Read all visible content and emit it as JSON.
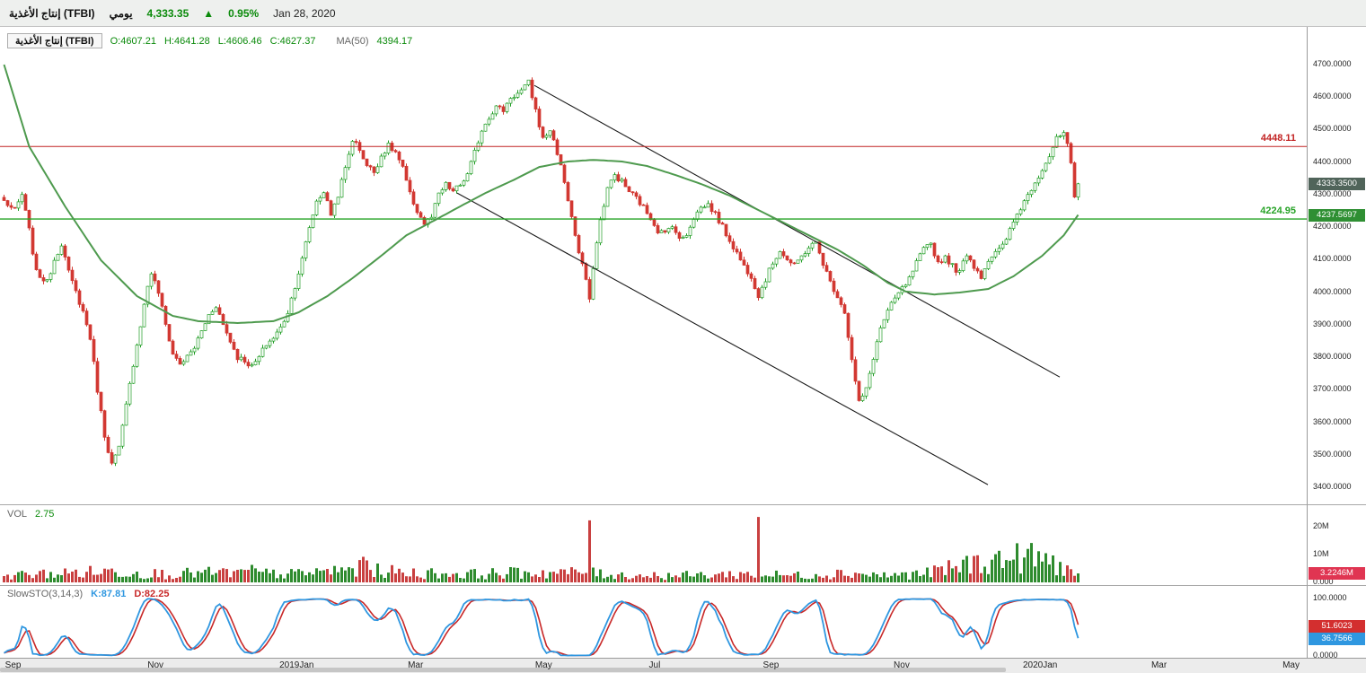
{
  "header": {
    "symbol": "إنتاج الأغذية (TFBI)",
    "timeframe": "يومي",
    "last_price": "4,333.35",
    "change_icon": "▲",
    "change_pct": "0.95%",
    "date": "Jan 28, 2020"
  },
  "legend": {
    "symbol": "إنتاج الأغذية (TFBI)",
    "ohlc": [
      "O:4607.21",
      "H:4641.28",
      "L:4606.46",
      "C:4627.37"
    ],
    "ma_label": "MA(50)",
    "ma_value": "4394.17"
  },
  "main_overlays": {
    "resistance_label": "4448.11",
    "support_label": "4224.95",
    "price_badge": "4333.3500",
    "ma_badge": "4237.5697"
  },
  "y_axis": {
    "ticks": [
      {
        "label": "4700.0000",
        "value": 4700
      },
      {
        "label": "4600.0000",
        "value": 4600
      },
      {
        "label": "4500.0000",
        "value": 4500
      },
      {
        "label": "4400.0000",
        "value": 4400
      },
      {
        "label": "4300.0000",
        "value": 4300
      },
      {
        "label": "4200.0000",
        "value": 4200
      },
      {
        "label": "4100.0000",
        "value": 4100
      },
      {
        "label": "4000.0000",
        "value": 4000
      },
      {
        "label": "3900.0000",
        "value": 3900
      },
      {
        "label": "3800.0000",
        "value": 3800
      },
      {
        "label": "3700.0000",
        "value": 3700
      },
      {
        "label": "3600.0000",
        "value": 3600
      },
      {
        "label": "3500.0000",
        "value": 3500
      },
      {
        "label": "3400.0000",
        "value": 3400
      }
    ]
  },
  "volume_pane": {
    "label": "VOL",
    "value": "2.75",
    "badge": "3.2246M",
    "ticks": [
      {
        "label": "20M",
        "value": 20
      },
      {
        "label": "10M",
        "value": 10
      },
      {
        "label": "0.000",
        "value": 0
      }
    ]
  },
  "sto_pane": {
    "label": "SlowSTO(3,14,3)",
    "k_text": "K:87.81",
    "d_text": "D:82.25",
    "d_badge": "51.6023",
    "k_badge": "36.7566",
    "ticks": [
      {
        "label": "100.0000",
        "value": 100
      },
      {
        "label": "0.0000",
        "value": 0
      }
    ]
  },
  "time_axis": {
    "labels": [
      {
        "label": "Sep",
        "x": 0.01
      },
      {
        "label": "Nov",
        "x": 0.119
      },
      {
        "label": "2019Jan",
        "x": 0.227
      },
      {
        "label": "Mar",
        "x": 0.318
      },
      {
        "label": "May",
        "x": 0.416
      },
      {
        "label": "Jul",
        "x": 0.501
      },
      {
        "label": "Sep",
        "x": 0.59
      },
      {
        "label": "Nov",
        "x": 0.69
      },
      {
        "label": "2020Jan",
        "x": 0.796
      },
      {
        "label": "Mar",
        "x": 0.887
      },
      {
        "label": "May",
        "x": 0.988
      }
    ]
  },
  "chart_data": {
    "type": "candlestick",
    "title": "إنتاج الأغذية (TFBI) يومي",
    "x_axis": "Sep 2018 – Jan 2020 (daily)",
    "y_range": [
      3400,
      4700
    ],
    "candle_count": 300,
    "last_close": 4333.35,
    "prev_close": 4292.5,
    "levels": {
      "resistance": 4448.11,
      "support": 4224.95
    },
    "close_anchors": [
      [
        0,
        4280
      ],
      [
        3,
        4250
      ],
      [
        5,
        4300
      ],
      [
        7,
        4190
      ],
      [
        9,
        4060
      ],
      [
        12,
        4030
      ],
      [
        14,
        4100
      ],
      [
        16,
        4150
      ],
      [
        18,
        4060
      ],
      [
        20,
        4000
      ],
      [
        22,
        3940
      ],
      [
        24,
        3860
      ],
      [
        26,
        3700
      ],
      [
        28,
        3560
      ],
      [
        30,
        3470
      ],
      [
        32,
        3520
      ],
      [
        34,
        3650
      ],
      [
        36,
        3780
      ],
      [
        38,
        3900
      ],
      [
        40,
        4020
      ],
      [
        41,
        4060
      ],
      [
        43,
        4000
      ],
      [
        45,
        3900
      ],
      [
        47,
        3810
      ],
      [
        49,
        3780
      ],
      [
        51,
        3800
      ],
      [
        53,
        3830
      ],
      [
        55,
        3880
      ],
      [
        57,
        3930
      ],
      [
        59,
        3960
      ],
      [
        61,
        3900
      ],
      [
        63,
        3850
      ],
      [
        65,
        3800
      ],
      [
        67,
        3790
      ],
      [
        69,
        3770
      ],
      [
        71,
        3800
      ],
      [
        73,
        3840
      ],
      [
        75,
        3860
      ],
      [
        77,
        3890
      ],
      [
        79,
        3940
      ],
      [
        81,
        4020
      ],
      [
        83,
        4100
      ],
      [
        85,
        4200
      ],
      [
        87,
        4280
      ],
      [
        89,
        4310
      ],
      [
        91,
        4240
      ],
      [
        93,
        4300
      ],
      [
        95,
        4380
      ],
      [
        97,
        4470
      ],
      [
        99,
        4440
      ],
      [
        101,
        4390
      ],
      [
        103,
        4370
      ],
      [
        105,
        4420
      ],
      [
        107,
        4450
      ],
      [
        109,
        4430
      ],
      [
        111,
        4380
      ],
      [
        113,
        4300
      ],
      [
        115,
        4250
      ],
      [
        117,
        4210
      ],
      [
        119,
        4230
      ],
      [
        121,
        4300
      ],
      [
        123,
        4330
      ],
      [
        125,
        4310
      ],
      [
        127,
        4330
      ],
      [
        129,
        4360
      ],
      [
        131,
        4430
      ],
      [
        133,
        4500
      ],
      [
        135,
        4540
      ],
      [
        137,
        4570
      ],
      [
        139,
        4560
      ],
      [
        141,
        4600
      ],
      [
        143,
        4610
      ],
      [
        145,
        4630
      ],
      [
        146,
        4645
      ],
      [
        148,
        4560
      ],
      [
        150,
        4470
      ],
      [
        152,
        4500
      ],
      [
        154,
        4430
      ],
      [
        156,
        4340
      ],
      [
        158,
        4230
      ],
      [
        160,
        4120
      ],
      [
        162,
        4040
      ],
      [
        163,
        3970
      ],
      [
        164,
        4080
      ],
      [
        166,
        4220
      ],
      [
        168,
        4320
      ],
      [
        170,
        4360
      ],
      [
        172,
        4340
      ],
      [
        174,
        4310
      ],
      [
        176,
        4290
      ],
      [
        178,
        4260
      ],
      [
        180,
        4230
      ],
      [
        182,
        4190
      ],
      [
        184,
        4180
      ],
      [
        186,
        4210
      ],
      [
        188,
        4160
      ],
      [
        190,
        4180
      ],
      [
        192,
        4230
      ],
      [
        194,
        4260
      ],
      [
        196,
        4270
      ],
      [
        198,
        4240
      ],
      [
        200,
        4200
      ],
      [
        202,
        4160
      ],
      [
        204,
        4120
      ],
      [
        206,
        4080
      ],
      [
        208,
        4050
      ],
      [
        210,
        3990
      ],
      [
        212,
        4040
      ],
      [
        214,
        4090
      ],
      [
        216,
        4130
      ],
      [
        218,
        4100
      ],
      [
        220,
        4080
      ],
      [
        222,
        4110
      ],
      [
        224,
        4140
      ],
      [
        226,
        4150
      ],
      [
        228,
        4090
      ],
      [
        230,
        4030
      ],
      [
        232,
        3990
      ],
      [
        234,
        3940
      ],
      [
        236,
        3790
      ],
      [
        238,
        3660
      ],
      [
        240,
        3700
      ],
      [
        242,
        3800
      ],
      [
        244,
        3890
      ],
      [
        246,
        3940
      ],
      [
        248,
        3980
      ],
      [
        250,
        4010
      ],
      [
        252,
        4040
      ],
      [
        254,
        4090
      ],
      [
        256,
        4130
      ],
      [
        258,
        4150
      ],
      [
        260,
        4090
      ],
      [
        262,
        4110
      ],
      [
        264,
        4080
      ],
      [
        266,
        4060
      ],
      [
        268,
        4120
      ],
      [
        270,
        4080
      ],
      [
        272,
        4050
      ],
      [
        274,
        4100
      ],
      [
        276,
        4120
      ],
      [
        278,
        4140
      ],
      [
        280,
        4190
      ],
      [
        282,
        4240
      ],
      [
        284,
        4280
      ],
      [
        286,
        4320
      ],
      [
        288,
        4360
      ],
      [
        290,
        4400
      ],
      [
        291,
        4420
      ],
      [
        293,
        4470
      ],
      [
        295,
        4490
      ],
      [
        296,
        4450
      ],
      [
        297,
        4390
      ],
      [
        298,
        4292
      ],
      [
        299,
        4333.35
      ]
    ],
    "ma50_anchors": [
      [
        0,
        4700
      ],
      [
        7,
        4448
      ],
      [
        17,
        4264
      ],
      [
        27,
        4098
      ],
      [
        37,
        3988
      ],
      [
        47,
        3927
      ],
      [
        54,
        3911
      ],
      [
        65,
        3905
      ],
      [
        75,
        3911
      ],
      [
        82,
        3938
      ],
      [
        90,
        3988
      ],
      [
        97,
        4043
      ],
      [
        105,
        4112
      ],
      [
        112,
        4175
      ],
      [
        120,
        4222
      ],
      [
        127,
        4264
      ],
      [
        134,
        4305
      ],
      [
        142,
        4346
      ],
      [
        149,
        4385
      ],
      [
        157,
        4402
      ],
      [
        164,
        4407
      ],
      [
        172,
        4402
      ],
      [
        179,
        4388
      ],
      [
        187,
        4360
      ],
      [
        194,
        4333
      ],
      [
        202,
        4297
      ],
      [
        209,
        4258
      ],
      [
        217,
        4214
      ],
      [
        224,
        4175
      ],
      [
        232,
        4131
      ],
      [
        239,
        4084
      ],
      [
        246,
        4029
      ],
      [
        251,
        4002
      ],
      [
        259,
        3993
      ],
      [
        266,
        3999
      ],
      [
        274,
        4010
      ],
      [
        281,
        4049
      ],
      [
        289,
        4112
      ],
      [
        295,
        4175
      ],
      [
        299,
        4237.57
      ]
    ],
    "trendlines": [
      {
        "x1": 0.409,
        "p1": 4636,
        "x2": 0.811,
        "p2": 3739
      },
      {
        "x1": 0.35,
        "p1": 4305,
        "x2": 0.756,
        "p2": 3408
      }
    ],
    "volume": {
      "unit": "M",
      "env_anchors": [
        [
          0,
          2.5
        ],
        [
          20,
          3.5
        ],
        [
          30,
          4.0
        ],
        [
          45,
          3.0
        ],
        [
          60,
          3.5
        ],
        [
          80,
          3.0
        ],
        [
          95,
          4.5
        ],
        [
          100,
          5.0
        ],
        [
          110,
          3.5
        ],
        [
          130,
          3.0
        ],
        [
          145,
          3.5
        ],
        [
          160,
          3.5
        ],
        [
          175,
          2.5
        ],
        [
          190,
          2.5
        ],
        [
          205,
          3.0
        ],
        [
          220,
          2.5
        ],
        [
          235,
          3.5
        ],
        [
          245,
          2.5
        ],
        [
          255,
          3.0
        ],
        [
          262,
          4.5
        ],
        [
          268,
          6.5
        ],
        [
          274,
          7.5
        ],
        [
          280,
          8.5
        ],
        [
          285,
          9.0
        ],
        [
          290,
          8.0
        ],
        [
          294,
          6.0
        ],
        [
          297,
          4.0
        ],
        [
          299,
          3.2
        ]
      ],
      "spikes": [
        [
          69,
          6.3
        ],
        [
          100,
          9.2
        ],
        [
          163,
          22.3
        ],
        [
          210,
          23.5
        ],
        [
          299,
          3.2246
        ]
      ]
    },
    "stochastic": {
      "period": 14,
      "k_smooth": 3,
      "d_smooth": 3,
      "k_last": 36.7566,
      "d_last": 51.6023
    },
    "colors": {
      "up": "#1f9d23",
      "down": "#d23832",
      "up_fill": "#ffffff",
      "ma": "#4e9a4e",
      "resistance": "#c22323",
      "support": "#27a327",
      "trendline": "#1a1a1a",
      "k_line": "#2f97e0",
      "d_line": "#c82828",
      "price_badge_bg": "#50645a",
      "ma_badge_bg": "#2f8f33",
      "vol_badge_bg": "#e03552",
      "d_badge_bg": "#d32f2f",
      "k_badge_bg": "#2f97e0",
      "vol_up": "#2e8b2e",
      "vol_down": "#c94040"
    }
  }
}
